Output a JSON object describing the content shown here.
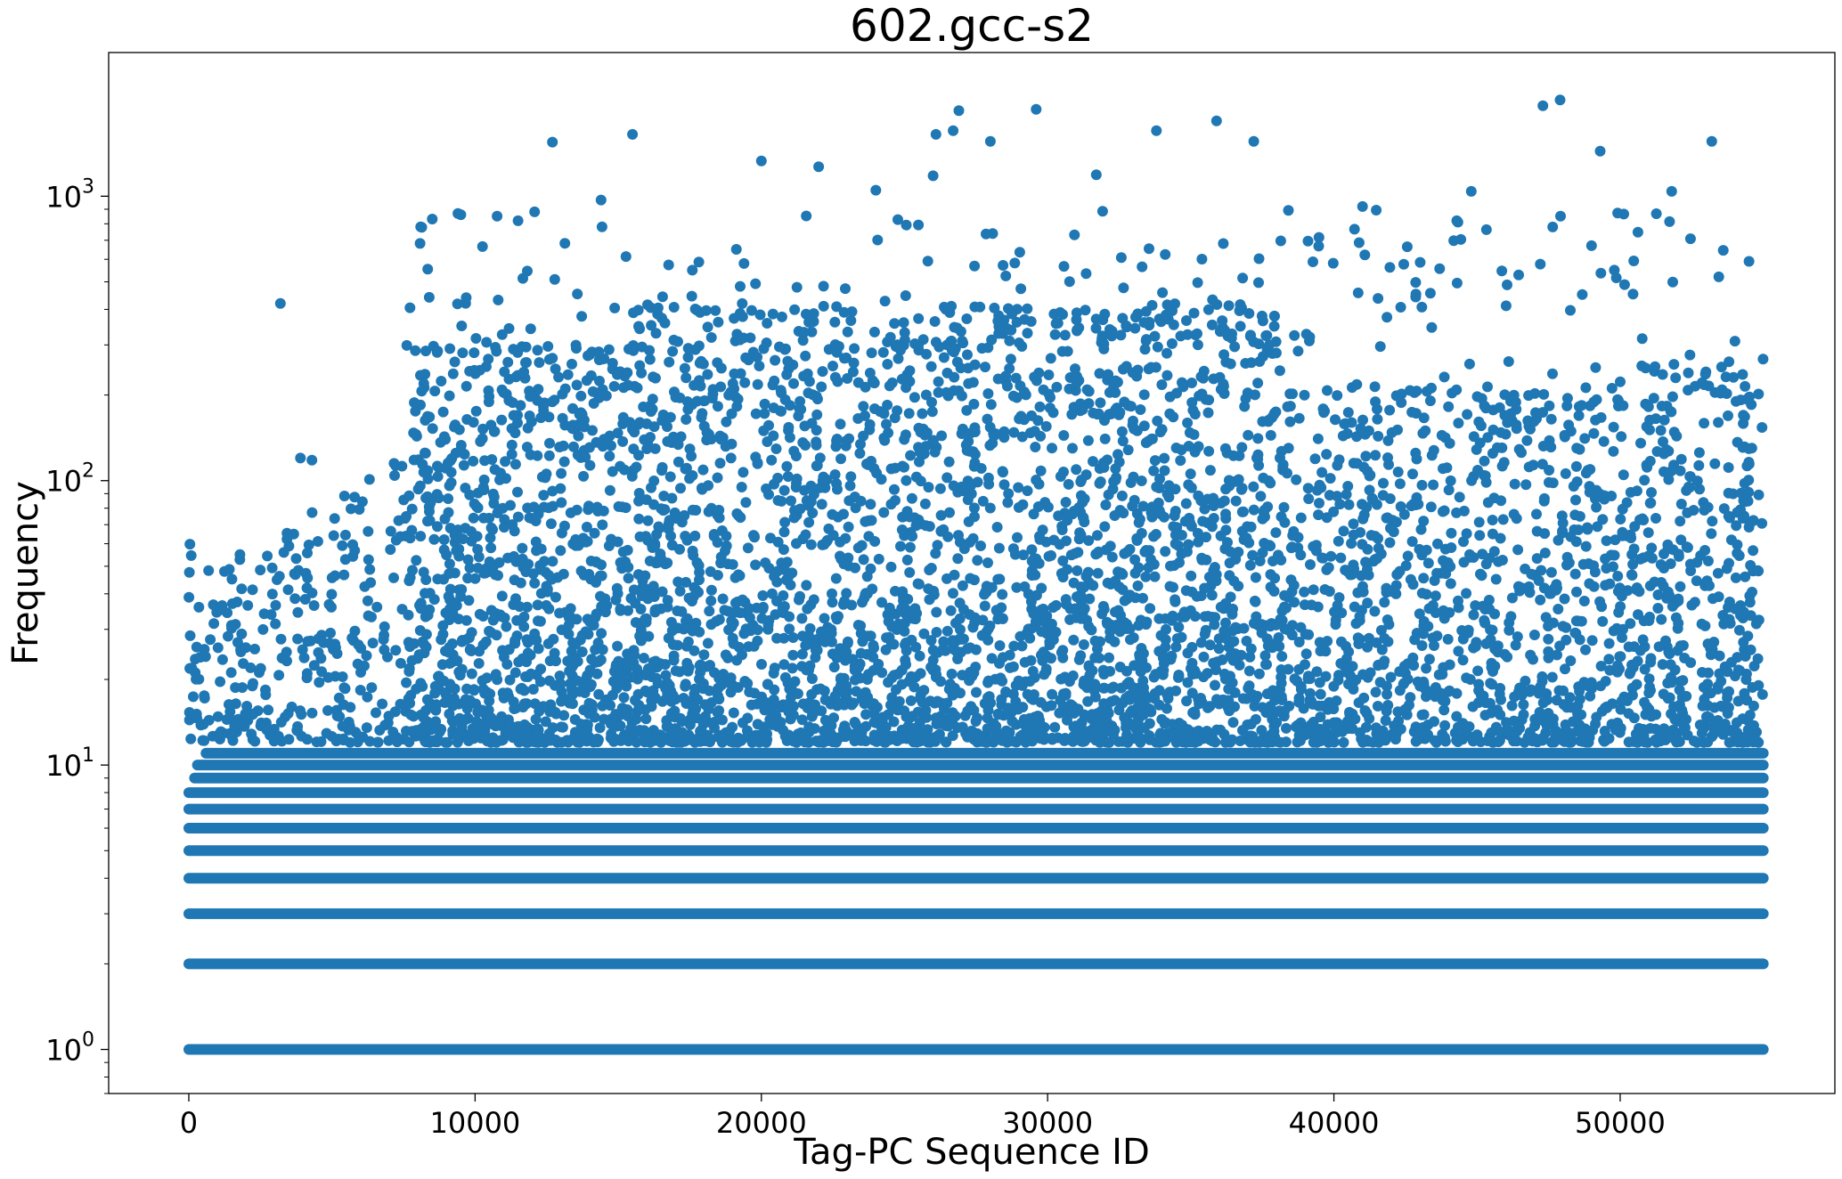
{
  "chart_data": {
    "type": "scatter",
    "title": "602.gcc-s2",
    "xlabel": "Tag-PC Sequence ID",
    "ylabel": "Frequency",
    "xlim": [
      -2800,
      57500
    ],
    "ylim": [
      0.7,
      3200
    ],
    "yscale": "log",
    "x_ticks": [
      0,
      10000,
      20000,
      30000,
      40000,
      50000
    ],
    "x_tick_labels": [
      "0",
      "10000",
      "20000",
      "30000",
      "40000",
      "50000"
    ],
    "y_ticks": [
      1,
      10,
      100,
      1000
    ],
    "y_tick_labels": [
      {
        "base": "10",
        "exp": "0"
      },
      {
        "base": "10",
        "exp": "1"
      },
      {
        "base": "10",
        "exp": "2"
      },
      {
        "base": "10",
        "exp": "3"
      }
    ],
    "grid": false,
    "marker_color": "#1f77b4",
    "x_range_of_points": [
      0,
      55000
    ],
    "dense_bands": [
      {
        "y": 1,
        "x_range": [
          0,
          55000
        ]
      },
      {
        "y": 2,
        "x_range": [
          0,
          55000
        ]
      },
      {
        "y": 3,
        "x_range": [
          0,
          55000
        ]
      },
      {
        "y": 4,
        "x_range": [
          0,
          55000
        ]
      },
      {
        "y": 5,
        "x_range": [
          0,
          55000
        ]
      },
      {
        "y": 6,
        "x_range": [
          0,
          55000
        ]
      },
      {
        "y": 7,
        "x_range": [
          0,
          55000
        ]
      },
      {
        "y": 8,
        "x_range": [
          0,
          55000
        ]
      },
      {
        "y": 9,
        "x_range": [
          200,
          55000
        ]
      },
      {
        "y": 10,
        "x_range": [
          300,
          55000
        ]
      },
      {
        "y": 11,
        "x_range": [
          600,
          55000
        ]
      }
    ],
    "outliers": [
      {
        "x": 3200,
        "y": 420
      },
      {
        "x": 3900,
        "y": 120
      },
      {
        "x": 4300,
        "y": 118
      },
      {
        "x": 12700,
        "y": 1550
      },
      {
        "x": 14400,
        "y": 970
      },
      {
        "x": 15500,
        "y": 1650
      },
      {
        "x": 20000,
        "y": 1330
      },
      {
        "x": 22000,
        "y": 1270
      },
      {
        "x": 24000,
        "y": 1050
      },
      {
        "x": 26000,
        "y": 1180
      },
      {
        "x": 26100,
        "y": 1650
      },
      {
        "x": 26700,
        "y": 1700
      },
      {
        "x": 26900,
        "y": 2000
      },
      {
        "x": 28000,
        "y": 1560
      },
      {
        "x": 29600,
        "y": 2020
      },
      {
        "x": 31700,
        "y": 1190
      },
      {
        "x": 33800,
        "y": 1700
      },
      {
        "x": 35900,
        "y": 1840
      },
      {
        "x": 37200,
        "y": 1560
      },
      {
        "x": 44800,
        "y": 1040
      },
      {
        "x": 47300,
        "y": 2080
      },
      {
        "x": 47900,
        "y": 2180
      },
      {
        "x": 49300,
        "y": 1440
      },
      {
        "x": 51800,
        "y": 1040
      },
      {
        "x": 53200,
        "y": 1560
      },
      {
        "x": 49000,
        "y": 670
      },
      {
        "x": 54500,
        "y": 590
      },
      {
        "x": 41000,
        "y": 920
      },
      {
        "x": 8100,
        "y": 780
      },
      {
        "x": 9400,
        "y": 870
      },
      {
        "x": 11500,
        "y": 820
      }
    ]
  }
}
